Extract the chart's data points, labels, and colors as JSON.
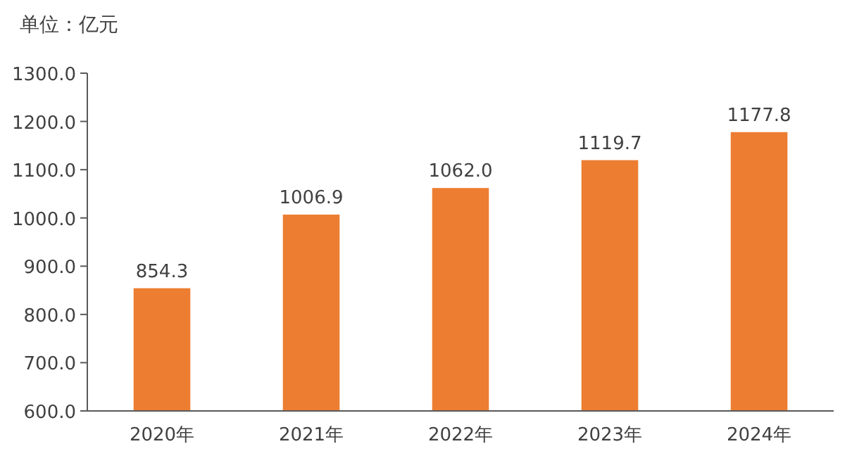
{
  "chart_data": {
    "type": "bar",
    "ylabel": "单位：亿元",
    "categories": [
      "2020年",
      "2021年",
      "2022年",
      "2023年",
      "2024年"
    ],
    "values": [
      854.3,
      1006.9,
      1062.0,
      1119.7,
      1177.8
    ],
    "value_labels": [
      "854.3",
      "1006.9",
      "1062.0",
      "1119.7",
      "1177.8"
    ],
    "color": "#ed7d31",
    "ylim": [
      600,
      1300
    ],
    "yticks": [
      {
        "value": 600,
        "label": "600.0"
      },
      {
        "value": 700,
        "label": "700.0"
      },
      {
        "value": 800,
        "label": "800.0"
      },
      {
        "value": 900,
        "label": "900.0"
      },
      {
        "value": 1000,
        "label": "1000.0"
      },
      {
        "value": 1100,
        "label": "1100.0"
      },
      {
        "value": 1200,
        "label": "1200.0"
      },
      {
        "value": 1300,
        "label": "1300.0"
      }
    ],
    "grid": false
  }
}
